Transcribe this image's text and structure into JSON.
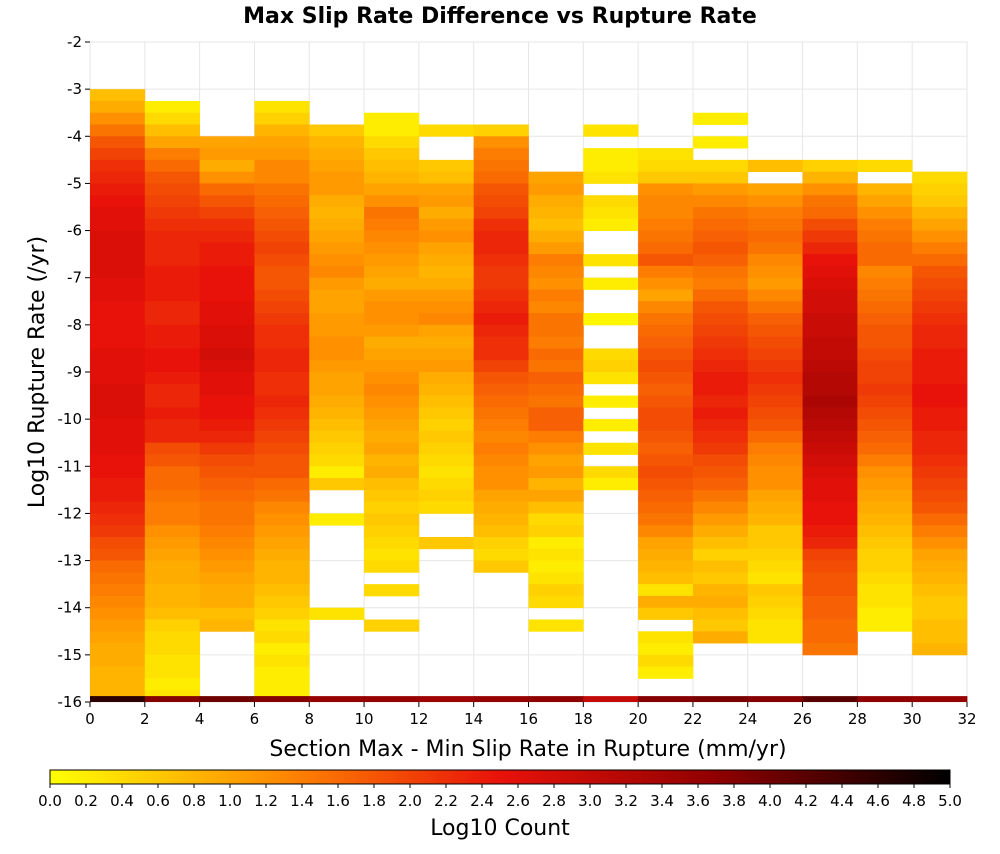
{
  "chart_data": {
    "type": "heatmap",
    "title": "Max Slip Rate Difference vs Rupture Rate",
    "xlabel": "Section Max - Min Slip Rate in Rupture (mm/yr)",
    "ylabel": "Log10 Rupture Rate (/yr)",
    "colorbar_label": "Log10 Count",
    "xlim": [
      0,
      32
    ],
    "ylim": [
      -16,
      -2
    ],
    "clim": [
      0,
      5
    ],
    "x_ticks": [
      0,
      2,
      4,
      6,
      8,
      10,
      12,
      14,
      16,
      18,
      20,
      22,
      24,
      26,
      28,
      30,
      32
    ],
    "y_ticks": [
      -2,
      -3,
      -4,
      -5,
      -6,
      -7,
      -8,
      -9,
      -10,
      -11,
      -12,
      -13,
      -14,
      -15,
      -16
    ],
    "colorbar_ticks": [
      "0.0",
      "0.2",
      "0.4",
      "0.6",
      "0.8",
      "1.0",
      "1.2",
      "1.4",
      "1.6",
      "1.8",
      "2.0",
      "2.2",
      "2.4",
      "2.6",
      "2.8",
      "3.0",
      "3.2",
      "3.4",
      "3.6",
      "3.8",
      "4.0",
      "4.2",
      "4.4",
      "4.6",
      "4.8",
      "5.0"
    ],
    "colormap": [
      "#ffff00",
      "#ff8c00",
      "#e8120a",
      "#8b0000",
      "#000000"
    ],
    "x_bin_width": 2,
    "y_bin_height": 0.25,
    "columns": [
      {
        "x": 1,
        "top": -3.0,
        "values": [
          0.7,
          0.9,
          1.2,
          1.5,
          1.8,
          2.0,
          2.2,
          2.3,
          2.4,
          2.5,
          2.6,
          2.6,
          2.7,
          2.7,
          2.7,
          2.7,
          2.6,
          2.6,
          2.5,
          2.5,
          2.5,
          2.5,
          2.6,
          2.6,
          2.6,
          2.7,
          2.7,
          2.7,
          2.6,
          2.6,
          2.6,
          2.5,
          2.5,
          2.4,
          2.4,
          2.3,
          2.2,
          2.1,
          1.9,
          1.8,
          1.6,
          1.5,
          1.4,
          1.3,
          1.2,
          1.1,
          1.0,
          0.9,
          0.9,
          0.8,
          0.8,
          0.8
        ]
      },
      {
        "x": 3,
        "top": -3.25,
        "values": [
          0.2,
          0.4,
          0.7,
          1.0,
          1.4,
          1.6,
          1.8,
          1.9,
          2.0,
          2.1,
          2.2,
          2.3,
          2.3,
          2.3,
          2.4,
          2.4,
          2.4,
          2.3,
          2.3,
          2.4,
          2.4,
          2.5,
          2.5,
          2.4,
          2.3,
          2.3,
          2.4,
          2.3,
          2.3,
          1.9,
          1.8,
          1.6,
          1.6,
          1.5,
          1.4,
          1.4,
          1.2,
          1.1,
          1.0,
          0.9,
          0.9,
          0.8,
          0.8,
          0.7,
          0.5,
          0.4,
          0.4,
          0.3,
          0.3,
          0.2,
          0.3
        ]
      },
      {
        "x": 5,
        "top": -4.0,
        "values": [
          1.0,
          1.1,
          0.9,
          1.2,
          1.6,
          1.8,
          2.0,
          2.2,
          2.3,
          2.4,
          2.4,
          2.5,
          2.5,
          2.5,
          2.6,
          2.6,
          2.7,
          2.7,
          2.8,
          2.7,
          2.6,
          2.6,
          2.5,
          2.5,
          2.4,
          2.3,
          2.1,
          1.9,
          1.8,
          1.7,
          1.6,
          1.5,
          1.5,
          1.4,
          1.3,
          1.2,
          1.1,
          1.0,
          0.9,
          0.9,
          0.7,
          0.8
        ]
      },
      {
        "x": 7,
        "top": -3.25,
        "values": [
          0.3,
          0.5,
          0.8,
          1.0,
          1.1,
          1.3,
          1.3,
          1.5,
          1.6,
          1.7,
          1.8,
          1.9,
          2.0,
          1.9,
          1.8,
          1.8,
          1.9,
          2.0,
          2.1,
          2.2,
          2.2,
          2.3,
          2.3,
          2.2,
          2.2,
          2.3,
          2.2,
          2.1,
          2.0,
          1.9,
          1.8,
          1.8,
          1.6,
          1.5,
          1.3,
          1.2,
          1.1,
          1.0,
          0.9,
          0.8,
          0.8,
          0.7,
          0.6,
          0.5,
          0.3,
          0.4,
          0.2,
          0.3,
          0.2,
          0.2,
          0.2
        ]
      },
      {
        "x": 9,
        "top": -3.75,
        "values": [
          0.6,
          0.8,
          0.9,
          1.0,
          1.1,
          1.1,
          0.9,
          0.8,
          0.9,
          1.0,
          1.1,
          1.2,
          1.3,
          1.1,
          1.0,
          1.0,
          1.1,
          1.1,
          1.2,
          1.2,
          1.1,
          1.0,
          1.0,
          0.9,
          0.8,
          0.7,
          0.6,
          0.5,
          0.4,
          0.2,
          0.6,
          null,
          null,
          0.2,
          null,
          null,
          null,
          null,
          null,
          null,
          null,
          0.3
        ]
      },
      {
        "x": 11,
        "top": -3.5,
        "values": [
          0.2,
          0.2,
          0.4,
          0.6,
          0.7,
          0.8,
          1.0,
          1.2,
          1.5,
          1.4,
          1.3,
          1.2,
          1.1,
          1.0,
          0.9,
          1.1,
          1.2,
          1.2,
          1.1,
          0.9,
          1.0,
          1.1,
          1.2,
          1.3,
          1.2,
          1.1,
          1.0,
          0.9,
          1.0,
          0.8,
          0.9,
          0.7,
          0.6,
          0.5,
          0.6,
          0.5,
          0.4,
          0.3,
          0.4,
          null,
          0.4,
          null,
          null,
          0.5
        ]
      },
      {
        "x": 13,
        "top": -3.75,
        "values": [
          0.4,
          null,
          null,
          0.6,
          0.7,
          1.0,
          1.1,
          0.9,
          1.1,
          1.2,
          1.0,
          0.9,
          0.8,
          0.9,
          1.1,
          1.2,
          1.3,
          1.0,
          0.9,
          1.0,
          1.1,
          0.9,
          0.8,
          0.7,
          0.6,
          0.5,
          0.6,
          0.5,
          0.4,
          0.3,
          0.4,
          0.5,
          0.4,
          null,
          null,
          0.6
        ]
      },
      {
        "x": 15,
        "top": -3.75,
        "values": [
          0.5,
          1.2,
          1.4,
          1.5,
          1.6,
          1.8,
          1.9,
          2.0,
          2.2,
          2.3,
          2.3,
          2.2,
          2.1,
          2.1,
          2.2,
          2.3,
          2.4,
          2.3,
          2.2,
          2.2,
          2.0,
          1.8,
          1.7,
          1.6,
          1.5,
          1.4,
          1.3,
          1.4,
          1.3,
          1.2,
          1.2,
          1.0,
          0.9,
          0.8,
          0.7,
          0.5,
          0.4,
          0.6
        ]
      },
      {
        "x": 17,
        "top": -4.75,
        "values": [
          1.0,
          1.1,
          0.9,
          0.8,
          0.7,
          0.9,
          1.1,
          1.4,
          1.3,
          1.2,
          1.4,
          1.3,
          1.5,
          1.5,
          1.4,
          1.6,
          1.5,
          1.7,
          1.6,
          1.5,
          1.7,
          1.7,
          1.4,
          1.2,
          1.0,
          1.1,
          0.8,
          1.0,
          0.7,
          0.4,
          0.5,
          0.2,
          0.3,
          0.2,
          0.3,
          0.5,
          0.4,
          null,
          0.3
        ]
      },
      {
        "x": 19,
        "top": -3.75,
        "values": [
          0.3,
          null,
          0.2,
          0.2,
          0.3,
          null,
          0.4,
          0.3,
          0.2,
          null,
          null,
          0.3,
          null,
          0.2,
          null,
          null,
          0.1,
          null,
          null,
          0.4,
          0.5,
          0.3,
          null,
          0.2,
          null,
          0.2,
          null,
          0.3,
          null,
          0.4,
          0.2
        ]
      },
      {
        "x": 21,
        "top": -4.25,
        "values": [
          0.3,
          0.4,
          0.6,
          1.2,
          1.3,
          1.3,
          1.4,
          1.5,
          1.6,
          1.8,
          1.4,
          1.2,
          1.0,
          1.3,
          1.5,
          1.6,
          1.7,
          1.8,
          1.9,
          1.8,
          1.7,
          1.8,
          1.9,
          1.9,
          1.8,
          1.7,
          1.8,
          1.9,
          1.8,
          1.7,
          1.6,
          1.5,
          1.3,
          1.0,
          0.9,
          0.8,
          0.7,
          0.3,
          0.9,
          0.6,
          null,
          0.3,
          0.2,
          0.4,
          0.2
        ]
      },
      {
        "x": 23,
        "top": -3.5,
        "values": [
          0.2,
          null,
          0.2,
          null,
          0.4,
          0.6,
          1.1,
          1.3,
          1.5,
          1.6,
          1.7,
          1.8,
          1.7,
          1.5,
          1.4,
          1.6,
          1.8,
          1.9,
          2.0,
          2.1,
          2.2,
          2.3,
          2.4,
          2.4,
          2.3,
          2.4,
          2.3,
          2.2,
          2.1,
          1.9,
          1.8,
          1.7,
          1.5,
          1.3,
          1.1,
          0.9,
          0.7,
          0.5,
          0.7,
          0.6,
          0.8,
          0.9,
          0.7,
          0.6,
          0.9
        ]
      },
      {
        "x": 25,
        "top": -4.5,
        "values": [
          0.7,
          null,
          1.0,
          1.2,
          1.4,
          1.5,
          1.6,
          1.5,
          1.3,
          1.2,
          1.1,
          1.3,
          1.5,
          1.7,
          1.8,
          1.9,
          2.0,
          2.1,
          2.2,
          2.1,
          2.0,
          1.9,
          1.8,
          1.6,
          1.4,
          1.3,
          1.2,
          1.2,
          1.0,
          0.9,
          0.8,
          0.6,
          0.6,
          0.5,
          0.4,
          0.3,
          0.6,
          0.5,
          0.4,
          0.3,
          0.3
        ]
      },
      {
        "x": 27,
        "top": -4.5,
        "values": [
          0.5,
          0.8,
          1.2,
          1.5,
          1.6,
          1.9,
          2.1,
          2.3,
          2.5,
          2.6,
          2.7,
          2.8,
          2.8,
          2.9,
          2.9,
          3.0,
          3.0,
          3.1,
          3.2,
          3.2,
          3.3,
          3.2,
          3.1,
          3.0,
          2.9,
          2.8,
          2.7,
          2.6,
          2.6,
          2.5,
          2.5,
          2.4,
          2.3,
          2.0,
          1.9,
          1.8,
          1.8,
          1.7,
          1.7,
          1.6,
          1.6,
          1.5
        ]
      },
      {
        "x": 29,
        "top": -4.5,
        "values": [
          0.4,
          null,
          0.8,
          1.0,
          1.2,
          1.4,
          1.5,
          1.6,
          1.6,
          1.3,
          1.4,
          1.5,
          1.6,
          1.7,
          1.8,
          1.8,
          1.9,
          2.0,
          2.0,
          2.1,
          2.0,
          1.9,
          1.8,
          1.7,
          1.6,
          1.4,
          1.2,
          1.1,
          1.0,
          0.9,
          0.8,
          0.7,
          0.6,
          0.5,
          0.5,
          0.4,
          0.3,
          0.3,
          0.2,
          0.2,
          null
        ]
      },
      {
        "x": 31,
        "top": -4.75,
        "values": [
          0.4,
          0.5,
          0.6,
          0.8,
          1.0,
          1.2,
          1.4,
          1.6,
          1.8,
          1.9,
          2.0,
          2.1,
          2.2,
          2.3,
          2.3,
          2.4,
          2.4,
          2.4,
          2.5,
          2.5,
          2.4,
          2.4,
          2.3,
          2.3,
          2.2,
          2.1,
          2.0,
          1.9,
          1.8,
          1.6,
          1.4,
          1.2,
          1.0,
          0.9,
          0.8,
          0.7,
          0.6,
          0.6,
          0.7,
          0.7,
          0.8
        ]
      }
    ],
    "bottom_row": {
      "y_top": -15.875,
      "values": [
        4.6,
        3.8,
        4.0,
        3.8,
        3.6,
        3.6,
        3.5,
        3.6,
        3.7,
        3.0,
        3.8,
        3.9,
        3.8,
        4.2,
        3.7,
        3.6
      ]
    }
  }
}
